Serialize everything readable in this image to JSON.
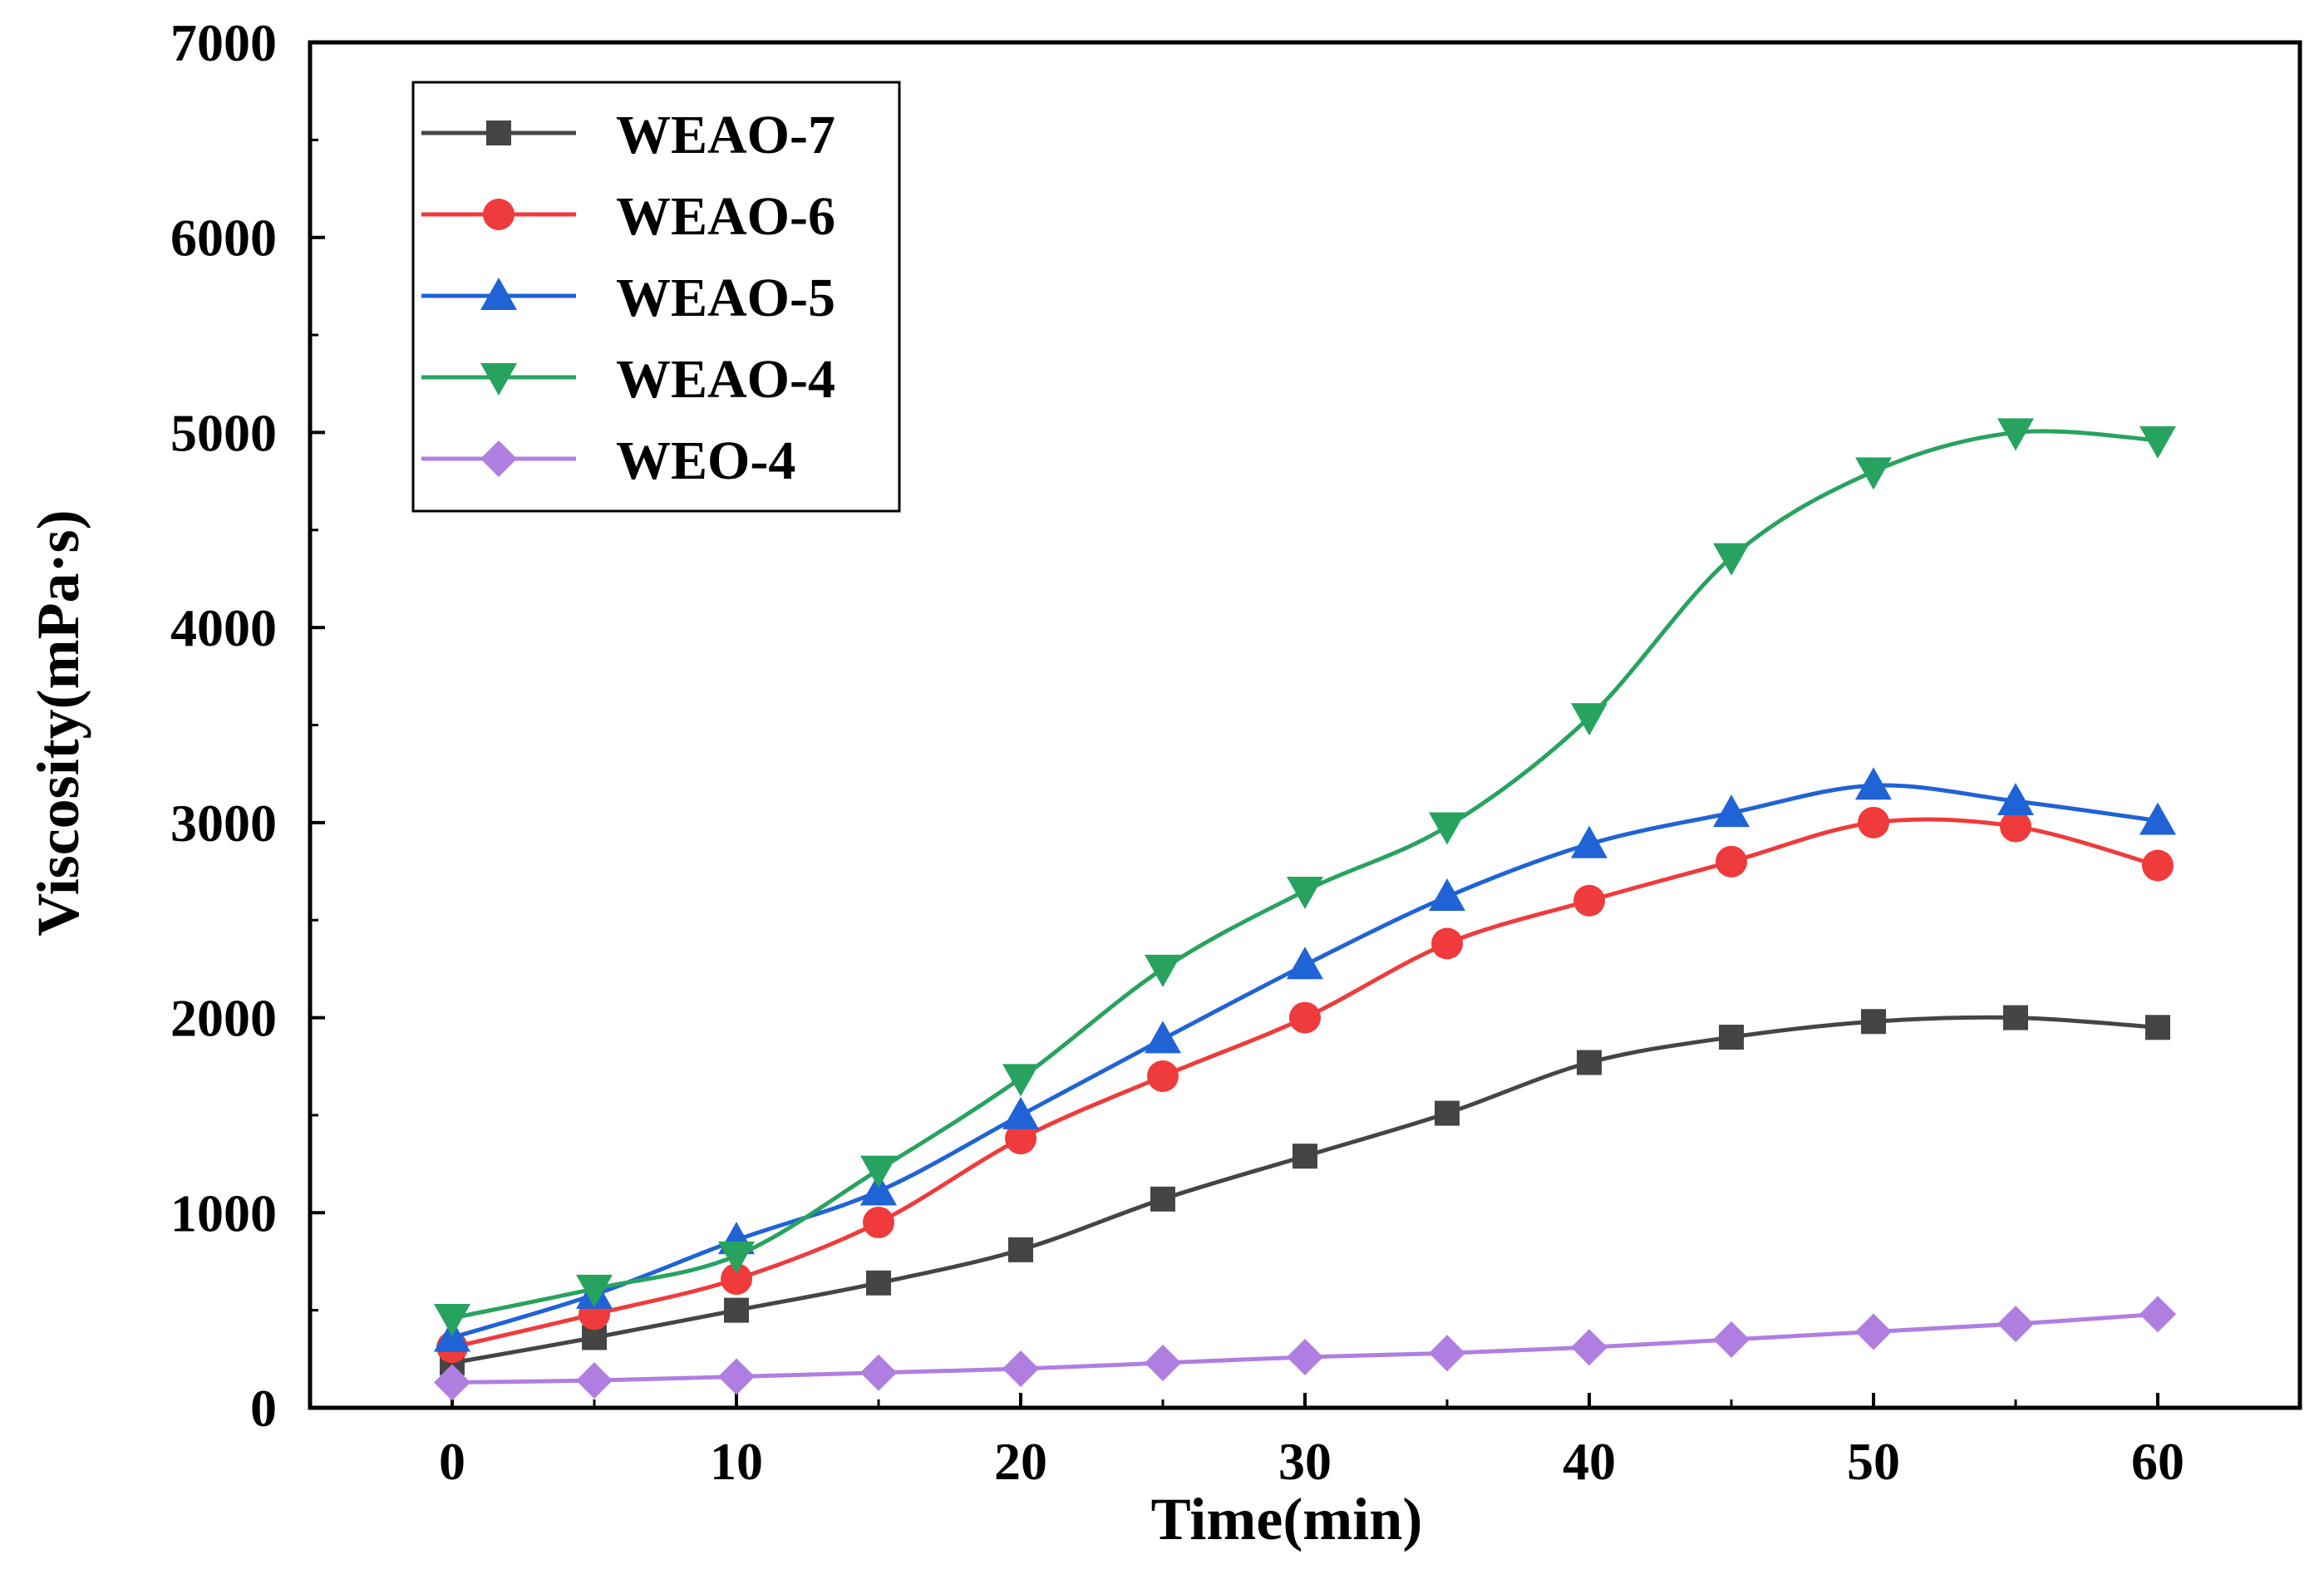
{
  "chart_data": {
    "type": "line",
    "title": "",
    "xlabel": "Time(min)",
    "ylabel": "Viscosity(mPa·s)",
    "xlim": [
      -5,
      65
    ],
    "ylim": [
      0,
      7000
    ],
    "xticks": [
      0,
      10,
      20,
      30,
      40,
      50,
      60
    ],
    "xtick_labels": [
      "0",
      "10",
      "20",
      "30",
      "40",
      "50",
      "60"
    ],
    "yticks": [
      0,
      1000,
      2000,
      3000,
      4000,
      5000,
      6000,
      7000
    ],
    "ytick_labels": [
      "0",
      "1000",
      "2000",
      "3000",
      "4000",
      "5000",
      "6000",
      "7000"
    ],
    "grid": false,
    "legend_position": "top-left",
    "x": [
      0,
      5,
      10,
      15,
      20,
      25,
      30,
      35,
      40,
      45,
      50,
      55,
      60
    ],
    "series": [
      {
        "name": "WEAO-7",
        "color": "#454545",
        "marker": "square",
        "values": [
          230,
          360,
          500,
          640,
          810,
          1070,
          1290,
          1510,
          1770,
          1900,
          1980,
          2000,
          1950
        ]
      },
      {
        "name": "WEAO-6",
        "color": "#ef3b3b",
        "marker": "circle",
        "values": [
          310,
          480,
          660,
          950,
          1380,
          1700,
          2000,
          2380,
          2600,
          2800,
          3000,
          2980,
          2780
        ]
      },
      {
        "name": "WEAO-5",
        "color": "#1f63d6",
        "marker": "triangle-up",
        "values": [
          360,
          580,
          860,
          1110,
          1500,
          1890,
          2270,
          2620,
          2890,
          3050,
          3190,
          3110,
          3010
        ]
      },
      {
        "name": "WEAO-4",
        "color": "#27a35f",
        "marker": "triangle-down",
        "values": [
          460,
          610,
          780,
          1220,
          1690,
          2250,
          2650,
          2980,
          3540,
          4360,
          4800,
          5000,
          4960
        ]
      },
      {
        "name": "WEO-4",
        "color": "#b07ee0",
        "marker": "diamond",
        "values": [
          130,
          140,
          160,
          180,
          200,
          230,
          260,
          280,
          310,
          350,
          390,
          430,
          480
        ]
      }
    ]
  }
}
